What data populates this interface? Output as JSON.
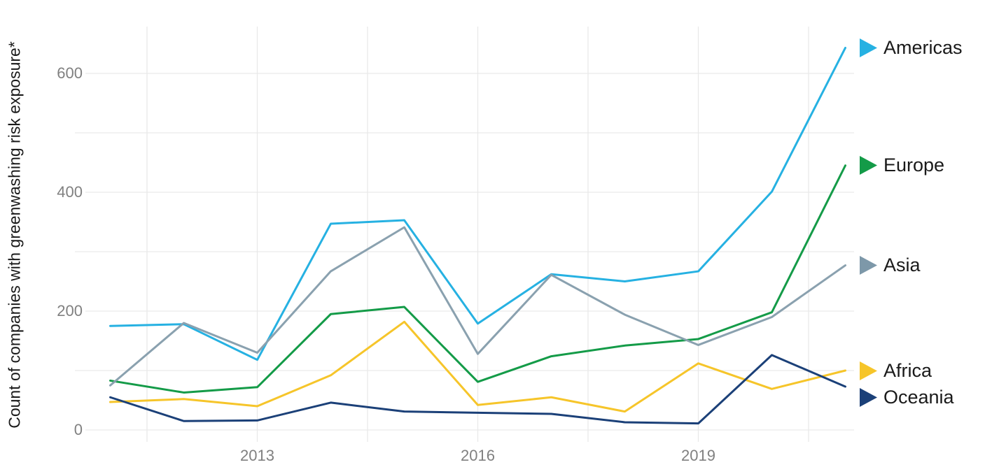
{
  "chart_data": {
    "type": "line",
    "title": "",
    "ylabel": "Count of companies with greenwashing risk exposure*",
    "xlabel": "",
    "x": [
      2011,
      2012,
      2013,
      2014,
      2015,
      2016,
      2017,
      2018,
      2019,
      2020,
      2021
    ],
    "x_tick_years": [
      2013,
      2016,
      2019
    ],
    "x_tick_labels": [
      "2013",
      "2016",
      "2019"
    ],
    "x_grid_years": [
      2011.5,
      2013,
      2014.5,
      2016,
      2017.5,
      2019,
      2020.5
    ],
    "y_ticks": [
      0,
      200,
      400,
      600
    ],
    "y_grid": [
      0,
      100,
      200,
      300,
      400,
      500,
      600
    ],
    "xlim": [
      2010.5,
      2021.1
    ],
    "ylim": [
      -20,
      679
    ],
    "grid": true,
    "legend_position": "right, aligned to line ends",
    "series": [
      {
        "name": "Americas",
        "color": "#26b1e2",
        "values": [
          175,
          178,
          118,
          347,
          353,
          179,
          262,
          250,
          267,
          401,
          643
        ]
      },
      {
        "name": "Europe",
        "color": "#149b48",
        "values": [
          83,
          63,
          72,
          195,
          207,
          81,
          124,
          142,
          153,
          198,
          445
        ]
      },
      {
        "name": "Asia",
        "color": "#8aa1af",
        "marker_color": "#7d98a9",
        "values": [
          75,
          180,
          130,
          267,
          341,
          128,
          261,
          194,
          143,
          190,
          277
        ]
      },
      {
        "name": "Africa",
        "color": "#f6c52a",
        "values": [
          47,
          52,
          40,
          92,
          182,
          42,
          55,
          31,
          112,
          69,
          100
        ]
      },
      {
        "name": "Oceania",
        "color": "#1b4078",
        "values": [
          55,
          15,
          16,
          46,
          31,
          29,
          27,
          13,
          11,
          126,
          73
        ]
      }
    ]
  },
  "colors": {
    "background": "#ffffff",
    "grid": "#e9e9e9",
    "tick_label": "#808080",
    "text": "#1a1a1a"
  }
}
